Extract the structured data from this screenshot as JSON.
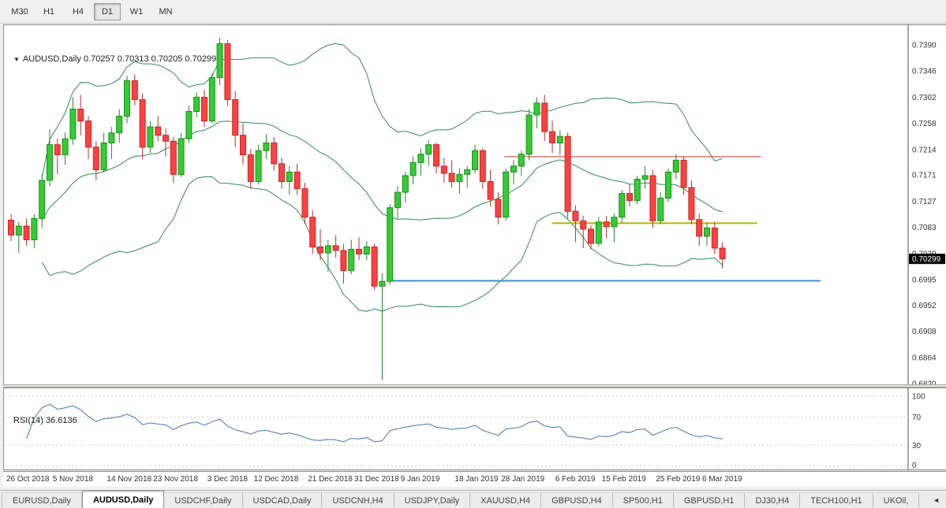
{
  "toolbar": {
    "timeframes": [
      {
        "label": "M30",
        "active": false
      },
      {
        "label": "H1",
        "active": false
      },
      {
        "label": "H4",
        "active": false
      },
      {
        "label": "D1",
        "active": true
      },
      {
        "label": "W1",
        "active": false
      },
      {
        "label": "MN",
        "active": false
      }
    ]
  },
  "chart": {
    "collapse_arrow": "▼",
    "symbol_title": "AUDUSD,Daily",
    "ohlc_string": "0.70257 0.70313 0.70205 0.70299",
    "current_price_label": "0.70299",
    "price_axis_ticks": [
      "0.7390",
      "0.7346",
      "0.7302",
      "0.7258",
      "0.7214",
      "0.7171",
      "0.7127",
      "0.7083",
      "0.7039",
      "0.6995",
      "0.6952",
      "0.6908",
      "0.6864",
      "0.6820"
    ]
  },
  "rsi_panel": {
    "label": "RSI(14) 36.6136",
    "axis_ticks": [
      "100",
      "70",
      "30",
      "0"
    ]
  },
  "tabs": [
    {
      "label": "EURUSD,Daily",
      "active": false
    },
    {
      "label": "AUDUSD,Daily",
      "active": true
    },
    {
      "label": "USDCHF,Daily",
      "active": false
    },
    {
      "label": "USDCAD,Daily",
      "active": false
    },
    {
      "label": "USDCNH,H4",
      "active": false
    },
    {
      "label": "USDJPY,Daily",
      "active": false
    },
    {
      "label": "XAUUSD,H4",
      "active": false
    },
    {
      "label": "GBPUSD,H4",
      "active": false
    },
    {
      "label": "SP500,H1",
      "active": false
    },
    {
      "label": "GBPUSD,H1",
      "active": false
    },
    {
      "label": "DJ30,H4",
      "active": false
    },
    {
      "label": "TECH100,H1",
      "active": false
    },
    {
      "label": "UKOil,",
      "active": false
    }
  ],
  "tab_scroll_arrow": "◄",
  "colors": {
    "candle_up_fill": "#32cd32",
    "candle_up_stroke": "#1e8b1e",
    "candle_down_fill": "#ff4040",
    "candle_down_stroke": "#c22828",
    "bollinger": "#2e8b57",
    "rsi_line": "#4076b4",
    "level_dash": "#c8c8c8",
    "axis_text": "#333333",
    "badge_bg": "#000000",
    "badge_text": "#ffffff",
    "hline_red": "#e03232",
    "hline_yellow": "#b5b500",
    "hline_blue": "#3e8fd0"
  },
  "chart_data": {
    "type": "candlestick",
    "symbol": "AUDUSD",
    "timeframe": "Daily",
    "ohlc_current": {
      "open": 0.70257,
      "high": 0.70313,
      "low": 0.70205,
      "close": 0.70299
    },
    "price_range": {
      "axis_top": 0.739,
      "axis_bottom": 0.682
    },
    "current_price": 0.70299,
    "indicators": {
      "bollinger": {
        "period": 20,
        "deviation": 2
      },
      "rsi": {
        "period": 14,
        "value": 36.6136,
        "levels": [
          100,
          70,
          30,
          0
        ]
      }
    },
    "hlines": [
      {
        "name": "resistance-red",
        "price": 0.7202,
        "color_key": "hline_red",
        "from_bar": 63.8,
        "to_bar": 97.0,
        "width": 1
      },
      {
        "name": "support-yellow",
        "price": 0.709,
        "color_key": "hline_yellow",
        "from_bar": 70.0,
        "to_bar": 96.5,
        "width": 2
      },
      {
        "name": "support-blue",
        "price": 0.6993,
        "color_key": "hline_blue",
        "from_bar": 49.3,
        "to_bar": 104.7,
        "width": 2
      }
    ],
    "date_labels": [
      "26 Oct 2018",
      "5 Nov 2018",
      "14 Nov 2018",
      "23 Nov 2018",
      "3 Dec 2018",
      "12 Dec 2018",
      "21 Dec 2018",
      "31 Dec 2018",
      "9 Jan 2019",
      "18 Jan 2019",
      "28 Jan 2019",
      "6 Feb 2019",
      "15 Feb 2019",
      "25 Feb 2019",
      "6 Mar 2019"
    ],
    "date_label_bars": [
      0,
      6,
      13,
      19,
      26,
      32,
      39,
      45,
      51,
      58,
      64,
      71,
      77,
      84,
      90
    ],
    "candles": [
      [
        0.7095,
        0.7105,
        0.706,
        0.707
      ],
      [
        0.707,
        0.7092,
        0.704,
        0.7085
      ],
      [
        0.7085,
        0.7098,
        0.7052,
        0.7062
      ],
      [
        0.7062,
        0.7105,
        0.7048,
        0.7098
      ],
      [
        0.7098,
        0.7172,
        0.7082,
        0.7162
      ],
      [
        0.7162,
        0.7248,
        0.7152,
        0.7222
      ],
      [
        0.7222,
        0.7232,
        0.7172,
        0.7205
      ],
      [
        0.7205,
        0.7242,
        0.7188,
        0.7232
      ],
      [
        0.7232,
        0.7302,
        0.7222,
        0.7282
      ],
      [
        0.7282,
        0.7306,
        0.7238,
        0.7262
      ],
      [
        0.7262,
        0.727,
        0.7198,
        0.7218
      ],
      [
        0.7218,
        0.7228,
        0.7162,
        0.718
      ],
      [
        0.718,
        0.7242,
        0.7175,
        0.7225
      ],
      [
        0.7225,
        0.7252,
        0.7198,
        0.7242
      ],
      [
        0.7242,
        0.7282,
        0.7225,
        0.727
      ],
      [
        0.727,
        0.7338,
        0.7258,
        0.733
      ],
      [
        0.733,
        0.734,
        0.7288,
        0.7298
      ],
      [
        0.7298,
        0.7308,
        0.7198,
        0.7218
      ],
      [
        0.7218,
        0.7262,
        0.7208,
        0.7252
      ],
      [
        0.7252,
        0.727,
        0.7228,
        0.7238
      ],
      [
        0.7238,
        0.725,
        0.7202,
        0.7228
      ],
      [
        0.7228,
        0.7235,
        0.7158,
        0.7172
      ],
      [
        0.7172,
        0.7242,
        0.7168,
        0.7232
      ],
      [
        0.7232,
        0.7288,
        0.7225,
        0.7278
      ],
      [
        0.7278,
        0.731,
        0.7268,
        0.7302
      ],
      [
        0.7302,
        0.7315,
        0.7252,
        0.7262
      ],
      [
        0.7262,
        0.7342,
        0.7258,
        0.7335
      ],
      [
        0.7335,
        0.7402,
        0.7322,
        0.7392
      ],
      [
        0.7392,
        0.7398,
        0.7288,
        0.7298
      ],
      [
        0.7298,
        0.7312,
        0.7218,
        0.7238
      ],
      [
        0.7238,
        0.7258,
        0.7188,
        0.7205
      ],
      [
        0.7205,
        0.7215,
        0.7148,
        0.716
      ],
      [
        0.716,
        0.7222,
        0.7155,
        0.7212
      ],
      [
        0.7212,
        0.724,
        0.7198,
        0.7225
      ],
      [
        0.7225,
        0.7235,
        0.7178,
        0.719
      ],
      [
        0.719,
        0.72,
        0.7148,
        0.716
      ],
      [
        0.716,
        0.7186,
        0.7138,
        0.7176
      ],
      [
        0.7176,
        0.719,
        0.7138,
        0.7148
      ],
      [
        0.7148,
        0.7158,
        0.7088,
        0.71
      ],
      [
        0.71,
        0.7112,
        0.7038,
        0.705
      ],
      [
        0.705,
        0.708,
        0.7028,
        0.704
      ],
      [
        0.704,
        0.7062,
        0.7008,
        0.7052
      ],
      [
        0.7052,
        0.707,
        0.7032,
        0.7044
      ],
      [
        0.7044,
        0.7055,
        0.6988,
        0.701
      ],
      [
        0.701,
        0.7062,
        0.7004,
        0.7046
      ],
      [
        0.7046,
        0.7066,
        0.7028,
        0.7038
      ],
      [
        0.7038,
        0.706,
        0.7028,
        0.705
      ],
      [
        0.705,
        0.7056,
        0.6978,
        0.6984
      ],
      [
        0.6984,
        0.7006,
        0.6826,
        0.6992
      ],
      [
        0.6992,
        0.7122,
        0.6986,
        0.7116
      ],
      [
        0.7116,
        0.7152,
        0.7098,
        0.7142
      ],
      [
        0.7142,
        0.7176,
        0.7125,
        0.717
      ],
      [
        0.717,
        0.7202,
        0.7155,
        0.7192
      ],
      [
        0.7192,
        0.7216,
        0.717,
        0.7206
      ],
      [
        0.7206,
        0.723,
        0.7186,
        0.7222
      ],
      [
        0.7222,
        0.7226,
        0.7174,
        0.7186
      ],
      [
        0.7186,
        0.72,
        0.7158,
        0.7174
      ],
      [
        0.7174,
        0.7196,
        0.715,
        0.716
      ],
      [
        0.716,
        0.7182,
        0.714,
        0.7172
      ],
      [
        0.7172,
        0.7186,
        0.715,
        0.718
      ],
      [
        0.718,
        0.7222,
        0.7174,
        0.7212
      ],
      [
        0.7212,
        0.7216,
        0.7148,
        0.716
      ],
      [
        0.716,
        0.718,
        0.7118,
        0.713
      ],
      [
        0.713,
        0.7142,
        0.7088,
        0.71
      ],
      [
        0.71,
        0.7182,
        0.7094,
        0.7176
      ],
      [
        0.7176,
        0.7196,
        0.7155,
        0.7186
      ],
      [
        0.7186,
        0.7212,
        0.717,
        0.7206
      ],
      [
        0.7206,
        0.7282,
        0.7196,
        0.7272
      ],
      [
        0.7272,
        0.7302,
        0.725,
        0.7292
      ],
      [
        0.7292,
        0.7306,
        0.7228,
        0.7244
      ],
      [
        0.7244,
        0.7262,
        0.7208,
        0.7225
      ],
      [
        0.7225,
        0.7246,
        0.7205,
        0.7236
      ],
      [
        0.7236,
        0.7242,
        0.7098,
        0.711
      ],
      [
        0.711,
        0.712,
        0.7058,
        0.7094
      ],
      [
        0.7094,
        0.7102,
        0.7048,
        0.708
      ],
      [
        0.708,
        0.7086,
        0.7046,
        0.7056
      ],
      [
        0.7056,
        0.71,
        0.705,
        0.7092
      ],
      [
        0.7092,
        0.7102,
        0.7064,
        0.7084
      ],
      [
        0.7084,
        0.7106,
        0.7058,
        0.71
      ],
      [
        0.71,
        0.7146,
        0.709,
        0.714
      ],
      [
        0.714,
        0.7156,
        0.7118,
        0.7128
      ],
      [
        0.7128,
        0.717,
        0.7122,
        0.7164
      ],
      [
        0.7164,
        0.7186,
        0.7148,
        0.717
      ],
      [
        0.717,
        0.718,
        0.7082,
        0.7094
      ],
      [
        0.7094,
        0.7142,
        0.7088,
        0.7132
      ],
      [
        0.7132,
        0.7182,
        0.7126,
        0.7176
      ],
      [
        0.7176,
        0.7206,
        0.7164,
        0.7196
      ],
      [
        0.7196,
        0.7202,
        0.7138,
        0.715
      ],
      [
        0.715,
        0.7162,
        0.7088,
        0.7096
      ],
      [
        0.7096,
        0.7106,
        0.7052,
        0.7068
      ],
      [
        0.7068,
        0.709,
        0.7052,
        0.7082
      ],
      [
        0.7082,
        0.7092,
        0.7038,
        0.7048
      ],
      [
        0.7048,
        0.7058,
        0.7014,
        0.703
      ]
    ]
  }
}
